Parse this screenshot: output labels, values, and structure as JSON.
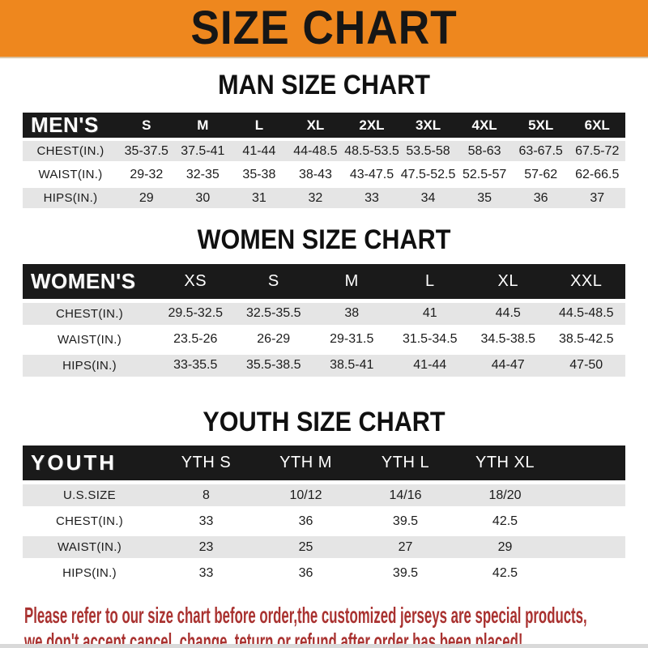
{
  "banner": {
    "title": "SIZE CHART"
  },
  "colors": {
    "banner_orange": "#EE871E",
    "header_black": "#1A1A1A",
    "row_gray": "#E5E5E5",
    "notice_red": "#A93230"
  },
  "sections": {
    "men": {
      "title": "MAN SIZE CHART",
      "corner_label": "MEN'S",
      "columns": [
        "S",
        "M",
        "L",
        "XL",
        "2XL",
        "3XL",
        "4XL",
        "5XL",
        "6XL"
      ],
      "rows": [
        {
          "label": "CHEST(IN.)",
          "values": [
            "35-37.5",
            "37.5-41",
            "41-44",
            "44-48.5",
            "48.5-53.5",
            "53.5-58",
            "58-63",
            "63-67.5",
            "67.5-72"
          ]
        },
        {
          "label": "WAIST(IN.)",
          "values": [
            "29-32",
            "32-35",
            "35-38",
            "38-43",
            "43-47.5",
            "47.5-52.5",
            "52.5-57",
            "57-62",
            "62-66.5"
          ]
        },
        {
          "label": "HIPS(IN.)",
          "values": [
            "29",
            "30",
            "31",
            "32",
            "33",
            "34",
            "35",
            "36",
            "37"
          ]
        }
      ]
    },
    "women": {
      "title": "WOMEN SIZE CHART",
      "corner_label": "WOMEN'S",
      "columns": [
        "XS",
        "S",
        "M",
        "L",
        "XL",
        "XXL"
      ],
      "rows": [
        {
          "label": "CHEST(IN.)",
          "values": [
            "29.5-32.5",
            "32.5-35.5",
            "38",
            "41",
            "44.5",
            "44.5-48.5"
          ]
        },
        {
          "label": "WAIST(IN.)",
          "values": [
            "23.5-26",
            "26-29",
            "29-31.5",
            "31.5-34.5",
            "34.5-38.5",
            "38.5-42.5"
          ]
        },
        {
          "label": "HIPS(IN.)",
          "values": [
            "33-35.5",
            "35.5-38.5",
            "38.5-41",
            "41-44",
            "44-47",
            "47-50"
          ]
        }
      ]
    },
    "youth": {
      "title": "YOUTH SIZE CHART",
      "corner_label": "YOUTH",
      "columns": [
        "YTH S",
        "YTH M",
        "YTH L",
        "YTH XL"
      ],
      "rows": [
        {
          "label": "U.S.SIZE",
          "values": [
            "8",
            "10/12",
            "14/16",
            "18/20"
          ]
        },
        {
          "label": "CHEST(IN.)",
          "values": [
            "33",
            "36",
            "39.5",
            "42.5"
          ]
        },
        {
          "label": "WAIST(IN.)",
          "values": [
            "23",
            "25",
            "27",
            "29"
          ]
        },
        {
          "label": "HIPS(IN.)",
          "values": [
            "33",
            "36",
            "39.5",
            "42.5"
          ]
        }
      ]
    }
  },
  "notice": {
    "line1": "Please refer to our size chart before order,the customized jerseys are special products,",
    "line2": "we don't accept cancel, change, teturn or refund after order has been placed!"
  }
}
